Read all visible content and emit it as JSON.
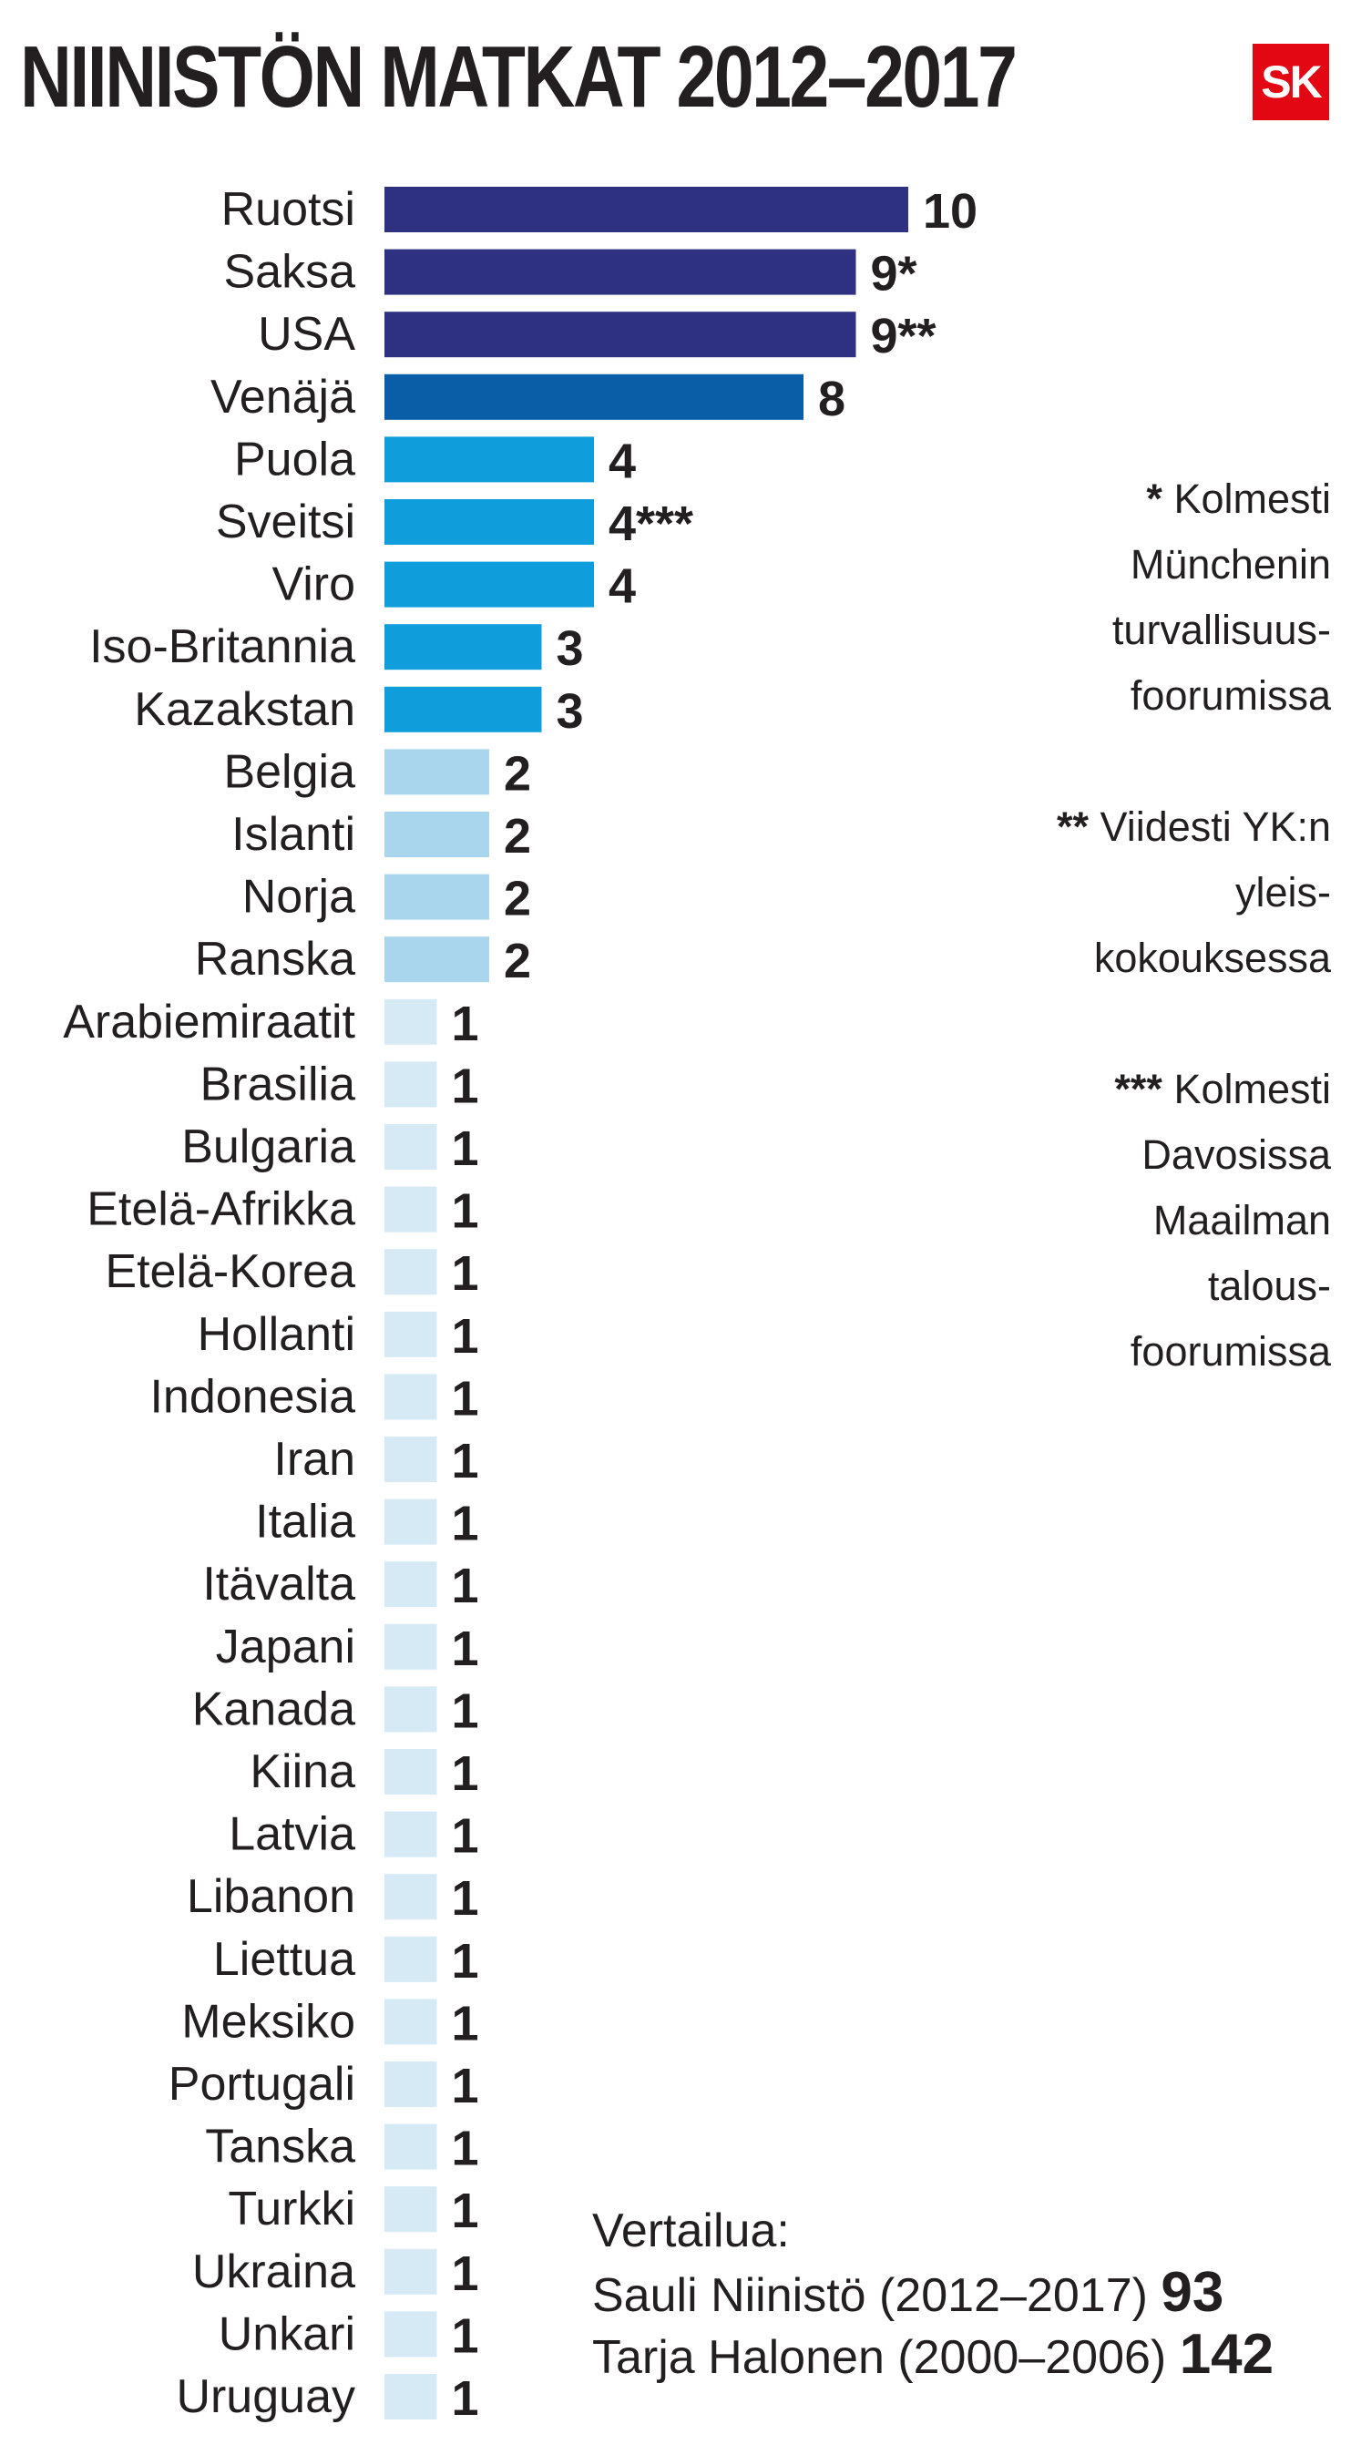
{
  "title": "NIINISTÖN MATKAT 2012–2017",
  "logo": "SK",
  "chart_data": {
    "type": "bar",
    "orientation": "horizontal",
    "title": "NIINISTÖN MATKAT 2012–2017",
    "xlim": [
      0,
      10
    ],
    "grid": false,
    "categories": [
      "Ruotsi",
      "Saksa",
      "USA",
      "Venäjä",
      "Puola",
      "Sveitsi",
      "Viro",
      "Iso-Britannia",
      "Kazakstan",
      "Belgia",
      "Islanti",
      "Norja",
      "Ranska",
      "Arabiemiraatit",
      "Brasilia",
      "Bulgaria",
      "Etelä-Afrikka",
      "Etelä-Korea",
      "Hollanti",
      "Indonesia",
      "Iran",
      "Italia",
      "Itävalta",
      "Japani",
      "Kanada",
      "Kiina",
      "Latvia",
      "Libanon",
      "Liettua",
      "Meksiko",
      "Portugali",
      "Tanska",
      "Turkki",
      "Ukraina",
      "Unkari",
      "Uruguay"
    ],
    "values": [
      10,
      9,
      9,
      8,
      4,
      4,
      4,
      3,
      3,
      2,
      2,
      2,
      2,
      1,
      1,
      1,
      1,
      1,
      1,
      1,
      1,
      1,
      1,
      1,
      1,
      1,
      1,
      1,
      1,
      1,
      1,
      1,
      1,
      1,
      1,
      1
    ],
    "value_labels": [
      "10",
      "9*",
      "9**",
      "8",
      "4",
      "4***",
      "4",
      "3",
      "3",
      "2",
      "2",
      "2",
      "2",
      "1",
      "1",
      "1",
      "1",
      "1",
      "1",
      "1",
      "1",
      "1",
      "1",
      "1",
      "1",
      "1",
      "1",
      "1",
      "1",
      "1",
      "1",
      "1",
      "1",
      "1",
      "1",
      "1"
    ],
    "colors_by_value": {
      "10": "#2e3182",
      "9": "#2e3182",
      "8": "#0a5ea8",
      "4": "#0f9ddc",
      "3": "#0f9ddc",
      "2": "#a9d6ec",
      "1": "#d6eaf6"
    }
  },
  "notes": [
    {
      "stars": "*",
      "text": "Kolmesti Münchenin turvallisuus- foorumissa"
    },
    {
      "stars": "**",
      "text": "Viidesti YK:n yleis- kokouksessa"
    },
    {
      "stars": "***",
      "text": "Kolmesti Davosissa Maailman talous- foorumissa"
    }
  ],
  "comparison": {
    "heading": "Vertailua:",
    "rows": [
      {
        "label": "Sauli Niinistö (2012–2017)",
        "value": "93"
      },
      {
        "label": "Tarja Halonen (2000–2006)",
        "value": "142"
      }
    ]
  }
}
